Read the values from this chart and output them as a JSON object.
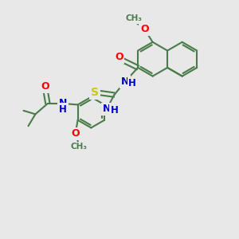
{
  "bg_color": "#e8e8e8",
  "bond_color": "#4a7c4a",
  "lw": 1.5,
  "atom_colors": {
    "O": "#ff0000",
    "N": "#0000cc",
    "S": "#cccc00",
    "H": "#0000cc",
    "C": "#4a7c4a"
  },
  "figsize": [
    3.0,
    3.0
  ],
  "dpi": 100
}
